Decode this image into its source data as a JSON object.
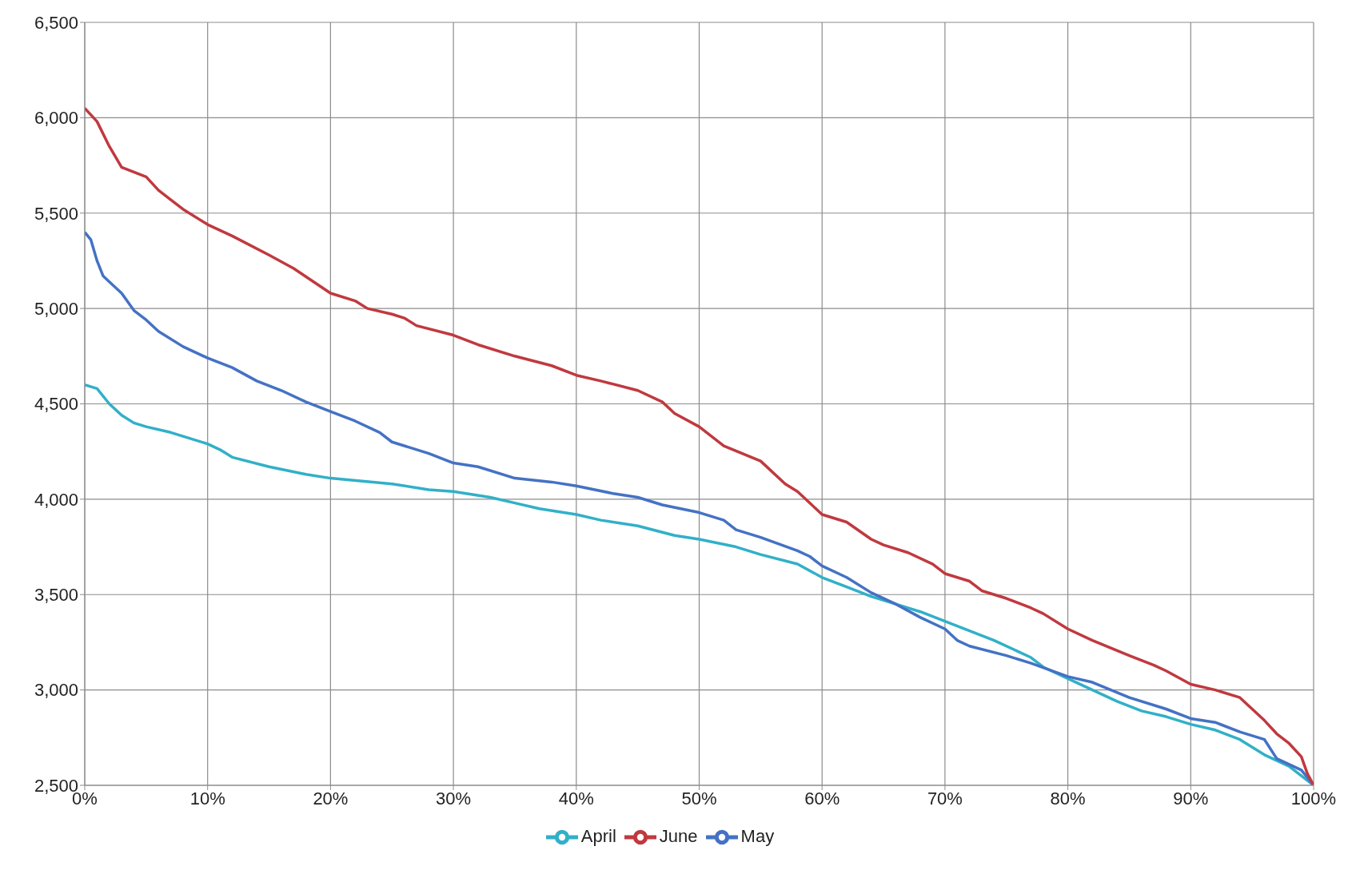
{
  "chart_data": {
    "type": "line",
    "xlim": [
      0,
      100
    ],
    "ylim": [
      2500,
      6500
    ],
    "xticks": [
      {
        "value": 0,
        "label": "0%"
      },
      {
        "value": 10,
        "label": "10%"
      },
      {
        "value": 20,
        "label": "20%"
      },
      {
        "value": 30,
        "label": "30%"
      },
      {
        "value": 40,
        "label": "40%"
      },
      {
        "value": 50,
        "label": "50%"
      },
      {
        "value": 60,
        "label": "60%"
      },
      {
        "value": 70,
        "label": "70%"
      },
      {
        "value": 80,
        "label": "80%"
      },
      {
        "value": 90,
        "label": "90%"
      },
      {
        "value": 100,
        "label": "100%"
      }
    ],
    "yticks": [
      {
        "value": 2500,
        "label": "2,500"
      },
      {
        "value": 3000,
        "label": "3,000"
      },
      {
        "value": 3500,
        "label": "3,500"
      },
      {
        "value": 4000,
        "label": "4,000"
      },
      {
        "value": 4500,
        "label": "4,500"
      },
      {
        "value": 5000,
        "label": "5,000"
      },
      {
        "value": 5500,
        "label": "5,500"
      },
      {
        "value": 6000,
        "label": "6,000"
      },
      {
        "value": 6500,
        "label": "6,500"
      }
    ],
    "grid": true,
    "legend": "bottom",
    "marker": "none",
    "line_style": "solid",
    "series": [
      {
        "name": "April",
        "color": "#31b0c8",
        "x": [
          0,
          1,
          2,
          3,
          4,
          5,
          7,
          8,
          10,
          11,
          12,
          15,
          18,
          20,
          25,
          28,
          30,
          33,
          35,
          37,
          40,
          42,
          45,
          48,
          50,
          53,
          55,
          58,
          60,
          62,
          64,
          66,
          68,
          70,
          72,
          74,
          76,
          77,
          78,
          80,
          82,
          84,
          86,
          88,
          90,
          92,
          94,
          96,
          98,
          100
        ],
        "values": [
          4600,
          4580,
          4500,
          4440,
          4400,
          4380,
          4350,
          4330,
          4290,
          4260,
          4220,
          4170,
          4130,
          4110,
          4080,
          4050,
          4040,
          4010,
          3980,
          3950,
          3920,
          3890,
          3860,
          3810,
          3790,
          3750,
          3710,
          3660,
          3590,
          3540,
          3490,
          3450,
          3410,
          3360,
          3310,
          3260,
          3200,
          3170,
          3120,
          3060,
          3000,
          2940,
          2890,
          2860,
          2820,
          2790,
          2740,
          2660,
          2600,
          2500
        ]
      },
      {
        "name": "May",
        "color": "#4472c4",
        "x": [
          0,
          0.5,
          1,
          1.5,
          2,
          3,
          4,
          5,
          6,
          8,
          10,
          12,
          14,
          16,
          18,
          20,
          22,
          24,
          25,
          28,
          30,
          32,
          35,
          38,
          40,
          43,
          45,
          47,
          50,
          52,
          53,
          55,
          58,
          59,
          60,
          62,
          64,
          66,
          68,
          70,
          71,
          72,
          75,
          77,
          80,
          82,
          85,
          88,
          90,
          92,
          94,
          96,
          97,
          99,
          100
        ],
        "values": [
          5400,
          5360,
          5250,
          5170,
          5140,
          5080,
          4990,
          4940,
          4880,
          4800,
          4740,
          4690,
          4620,
          4570,
          4510,
          4460,
          4410,
          4350,
          4300,
          4240,
          4190,
          4170,
          4110,
          4090,
          4070,
          4030,
          4010,
          3970,
          3930,
          3890,
          3840,
          3800,
          3730,
          3700,
          3650,
          3590,
          3510,
          3450,
          3380,
          3320,
          3260,
          3230,
          3180,
          3140,
          3070,
          3040,
          2960,
          2900,
          2850,
          2830,
          2780,
          2740,
          2640,
          2580,
          2500
        ]
      },
      {
        "name": "June",
        "color": "#c0393f",
        "x": [
          0,
          1,
          2,
          3,
          5,
          6,
          8,
          10,
          12,
          15,
          17,
          20,
          22,
          23,
          25,
          26,
          27,
          30,
          32,
          35,
          38,
          40,
          42,
          45,
          47,
          48,
          50,
          52,
          55,
          57,
          58,
          60,
          62,
          64,
          65,
          67,
          69,
          70,
          72,
          73,
          75,
          77,
          78,
          80,
          82,
          85,
          87,
          88,
          90,
          92,
          94,
          95,
          96,
          97,
          98,
          99,
          99.5,
          100
        ],
        "values": [
          6050,
          5980,
          5850,
          5740,
          5690,
          5620,
          5520,
          5440,
          5380,
          5280,
          5210,
          5080,
          5040,
          5000,
          4970,
          4950,
          4910,
          4860,
          4810,
          4750,
          4700,
          4650,
          4620,
          4570,
          4510,
          4450,
          4380,
          4280,
          4200,
          4080,
          4040,
          3920,
          3880,
          3790,
          3760,
          3720,
          3660,
          3610,
          3570,
          3520,
          3480,
          3430,
          3400,
          3320,
          3260,
          3180,
          3130,
          3100,
          3030,
          3000,
          2960,
          2900,
          2840,
          2770,
          2720,
          2650,
          2560,
          2500
        ]
      }
    ]
  }
}
